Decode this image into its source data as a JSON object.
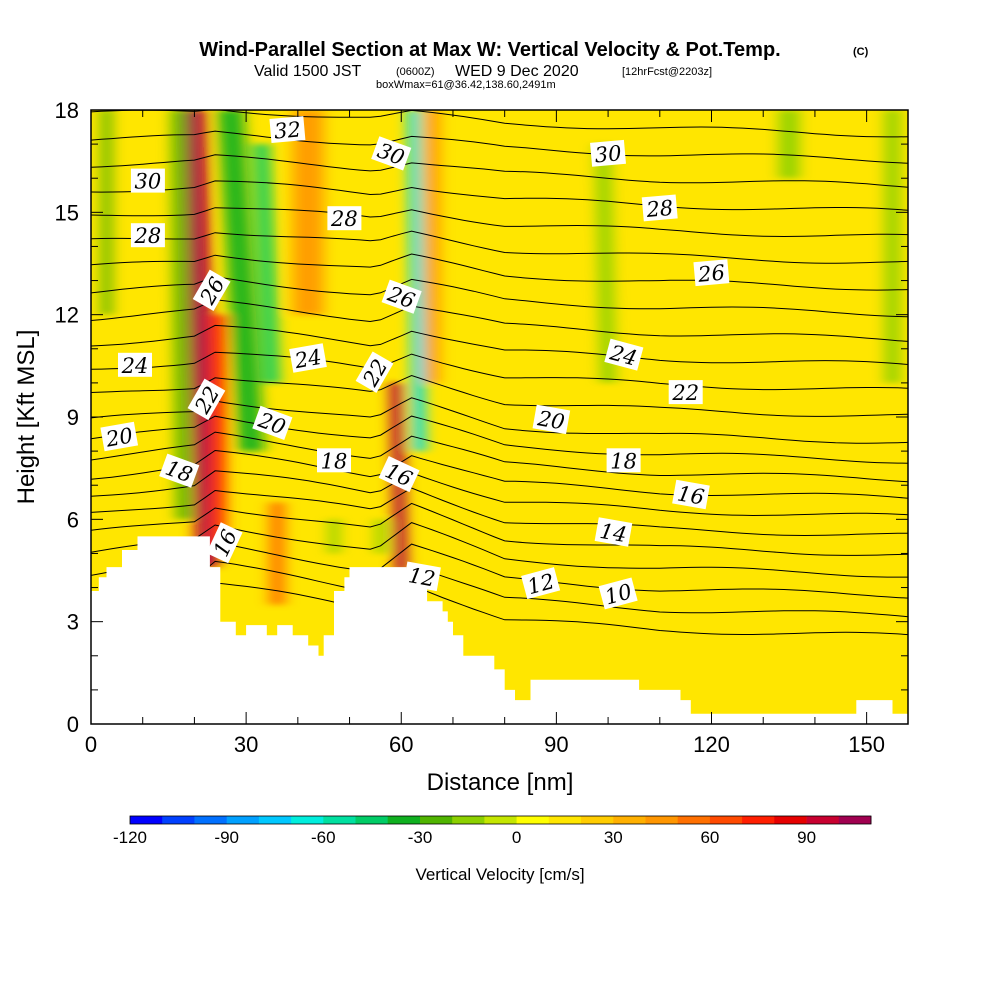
{
  "header": {
    "title": "Wind-Parallel Section at Max W: Vertical Velocity & Pot.Temp.",
    "title_unit": "(C)",
    "valid_prefix": "Valid 1500 JST",
    "valid_utc": "(0600Z)",
    "valid_date": "WED 9 Dec 2020",
    "forecast": "[12hrFcst@2203z]",
    "boxinfo": "boxWmax=61@36.42,138.60,2491m"
  },
  "chart_data": {
    "type": "heatmap",
    "xlabel": "Distance [nm]",
    "ylabel": "Height [Kft MSL]",
    "xlim": [
      0,
      158
    ],
    "ylim": [
      0,
      18
    ],
    "x_ticks": [
      0,
      30,
      60,
      90,
      120,
      150
    ],
    "y_ticks": [
      0,
      3,
      6,
      9,
      12,
      15,
      18
    ],
    "x_minor_step": 10,
    "y_minor_step": 1,
    "background_color": "#ffe600",
    "colorbar": {
      "title": "Vertical Velocity [cm/s]",
      "min": -120,
      "max": 110,
      "step": 10,
      "tick_values": [
        -120,
        -90,
        -60,
        -30,
        0,
        30,
        60,
        90
      ],
      "colors": [
        "#0000ff",
        "#0040ff",
        "#0070ff",
        "#00a0ff",
        "#00c8ff",
        "#00eedd",
        "#00e0a0",
        "#00cc66",
        "#10b020",
        "#50b400",
        "#8cd000",
        "#c4e600",
        "#ffff00",
        "#ffe600",
        "#ffcc00",
        "#ffb000",
        "#ff9600",
        "#ff7000",
        "#ff4a00",
        "#ff1e00",
        "#e60000",
        "#c80030",
        "#a00050",
        "#800070",
        "#600090"
      ]
    },
    "terrain": [
      [
        0,
        3.9
      ],
      [
        1.5,
        3.9
      ],
      [
        1.5,
        4.3
      ],
      [
        3,
        4.3
      ],
      [
        3,
        4.6
      ],
      [
        6,
        4.6
      ],
      [
        6,
        5.1
      ],
      [
        9,
        5.1
      ],
      [
        9,
        5.5
      ],
      [
        12,
        5.5
      ],
      [
        12,
        5.5
      ],
      [
        18,
        5.5
      ],
      [
        18,
        5.5
      ],
      [
        23,
        5.5
      ],
      [
        23,
        4.6
      ],
      [
        25,
        4.6
      ],
      [
        25,
        3
      ],
      [
        28,
        3
      ],
      [
        28,
        2.6
      ],
      [
        30,
        2.6
      ],
      [
        30,
        2.9
      ],
      [
        34,
        2.9
      ],
      [
        34,
        2.6
      ],
      [
        36,
        2.6
      ],
      [
        36,
        2.9
      ],
      [
        39,
        2.9
      ],
      [
        39,
        2.6
      ],
      [
        42,
        2.6
      ],
      [
        42,
        2.3
      ],
      [
        44,
        2.3
      ],
      [
        44,
        2
      ],
      [
        45,
        2
      ],
      [
        45,
        2.6
      ],
      [
        47,
        2.6
      ],
      [
        47,
        3.9
      ],
      [
        49,
        3.9
      ],
      [
        49,
        4.3
      ],
      [
        50,
        4.3
      ],
      [
        50,
        4.6
      ],
      [
        59,
        4.6
      ],
      [
        59,
        4.6
      ],
      [
        61,
        4.6
      ],
      [
        61,
        4.3
      ],
      [
        63,
        4.3
      ],
      [
        63,
        4.6
      ],
      [
        65,
        4.6
      ],
      [
        65,
        3.6
      ],
      [
        68,
        3.6
      ],
      [
        68,
        3.3
      ],
      [
        69,
        3.3
      ],
      [
        69,
        3
      ],
      [
        70,
        3
      ],
      [
        70,
        2.6
      ],
      [
        72,
        2.6
      ],
      [
        72,
        2
      ],
      [
        78,
        2
      ],
      [
        78,
        1.6
      ],
      [
        80,
        1.6
      ],
      [
        80,
        1
      ],
      [
        82,
        1
      ],
      [
        82,
        0.7
      ],
      [
        85,
        0.7
      ],
      [
        85,
        1.3
      ],
      [
        96,
        1.3
      ],
      [
        96,
        1.3
      ],
      [
        106,
        1.3
      ],
      [
        106,
        1
      ],
      [
        114,
        1
      ],
      [
        114,
        0.7
      ],
      [
        116,
        0.7
      ],
      [
        116,
        0.3
      ],
      [
        130,
        0.3
      ],
      [
        130,
        0.3
      ],
      [
        148,
        0.3
      ],
      [
        148,
        0.7
      ],
      [
        155,
        0.7
      ],
      [
        155,
        0.3
      ],
      [
        158,
        0.3
      ]
    ],
    "vertical_velocity_features": [
      {
        "x": 22.5,
        "y_bottom": 4.6,
        "y_top": 18,
        "width": 4.5,
        "lean": -2.5,
        "w": 95
      },
      {
        "x": 24.5,
        "y_bottom": 5.2,
        "y_top": 12,
        "width": 3.5,
        "lean": 0,
        "w": 60
      },
      {
        "x": 36,
        "y_bottom": 3.5,
        "y_top": 6.5,
        "width": 3,
        "lean": 0,
        "w": 55
      },
      {
        "x": 42,
        "y_bottom": 12,
        "y_top": 18,
        "width": 6,
        "lean": 0,
        "w": 40
      },
      {
        "x": 60,
        "y_bottom": 4.5,
        "y_top": 10,
        "width": 2.5,
        "lean": -1,
        "w": 90
      },
      {
        "x": 66,
        "y_bottom": 10,
        "y_top": 18,
        "width": 3,
        "lean": 0,
        "w": 40
      },
      {
        "x": 18,
        "y_bottom": 6,
        "y_top": 18,
        "width": 3,
        "lean": -1,
        "w": -30
      },
      {
        "x": 31,
        "y_bottom": 8,
        "y_top": 18,
        "width": 5,
        "lean": -4,
        "w": -35
      },
      {
        "x": 35,
        "y_bottom": 10,
        "y_top": 17,
        "width": 3,
        "lean": -2,
        "w": -45
      },
      {
        "x": 63.5,
        "y_bottom": 8,
        "y_top": 18,
        "width": 2.5,
        "lean": -1,
        "w": -70
      },
      {
        "x": 56,
        "y_bottom": 5,
        "y_top": 6,
        "width": 2,
        "lean": 0,
        "w": -20
      },
      {
        "x": 47,
        "y_bottom": 5,
        "y_top": 6,
        "width": 2,
        "lean": 0,
        "w": -20
      },
      {
        "x": 3,
        "y_bottom": 12,
        "y_top": 18,
        "width": 2,
        "lean": 0,
        "w": -25
      },
      {
        "x": 100,
        "y_bottom": 10,
        "y_top": 17,
        "width": 3,
        "lean": -1,
        "w": -20
      },
      {
        "x": 135,
        "y_bottom": 16,
        "y_top": 18,
        "width": 4,
        "lean": 0,
        "w": -15
      },
      {
        "x": 155,
        "y_bottom": 10,
        "y_top": 18,
        "width": 3,
        "lean": 0,
        "w": -20
      }
    ],
    "pot_temp_contours": {
      "line_color": "#000000",
      "levels": [
        10,
        11,
        12,
        13,
        14,
        15,
        16,
        17,
        18,
        19,
        20,
        21,
        22,
        23,
        24,
        25,
        26,
        27,
        28,
        29,
        30,
        31,
        32
      ],
      "base_profile": {
        "x": [
          0,
          20,
          24,
          40,
          55,
          62,
          80,
          110,
          158
        ],
        "offset": [
          0,
          0.6,
          1.2,
          0.8,
          0.4,
          1.4,
          0.2,
          0,
          0
        ]
      },
      "labels": [
        {
          "text": "30",
          "x": 11,
          "y": 15.9,
          "angle": 0
        },
        {
          "text": "28",
          "x": 11,
          "y": 14.3,
          "angle": 0
        },
        {
          "text": "24",
          "x": 8.5,
          "y": 10.5,
          "angle": 0
        },
        {
          "text": "20",
          "x": 5.5,
          "y": 8.4,
          "angle": -10
        },
        {
          "text": "18",
          "x": 17,
          "y": 7.4,
          "angle": 20
        },
        {
          "text": "26",
          "x": 23.5,
          "y": 12.7,
          "angle": -60
        },
        {
          "text": "22",
          "x": 22.5,
          "y": 9.5,
          "angle": -60
        },
        {
          "text": "16",
          "x": 26,
          "y": 5.3,
          "angle": -65
        },
        {
          "text": "32",
          "x": 38,
          "y": 17.4,
          "angle": -5
        },
        {
          "text": "28",
          "x": 49,
          "y": 14.8,
          "angle": 0
        },
        {
          "text": "24",
          "x": 42,
          "y": 10.7,
          "angle": -10
        },
        {
          "text": "20",
          "x": 35,
          "y": 8.8,
          "angle": 20
        },
        {
          "text": "18",
          "x": 47,
          "y": 7.7,
          "angle": 0
        },
        {
          "text": "30",
          "x": 58,
          "y": 16.7,
          "angle": 20
        },
        {
          "text": "26",
          "x": 60,
          "y": 12.5,
          "angle": 20
        },
        {
          "text": "22",
          "x": 55,
          "y": 10.3,
          "angle": -60
        },
        {
          "text": "16",
          "x": 59.5,
          "y": 7.3,
          "angle": 25
        },
        {
          "text": "12",
          "x": 64,
          "y": 4.3,
          "angle": 10
        },
        {
          "text": "30",
          "x": 100,
          "y": 16.7,
          "angle": -5
        },
        {
          "text": "28",
          "x": 110,
          "y": 15.1,
          "angle": -5
        },
        {
          "text": "26",
          "x": 120,
          "y": 13.2,
          "angle": -5
        },
        {
          "text": "24",
          "x": 103,
          "y": 10.8,
          "angle": 15
        },
        {
          "text": "22",
          "x": 115,
          "y": 9.7,
          "angle": 0
        },
        {
          "text": "20",
          "x": 89,
          "y": 8.9,
          "angle": 10
        },
        {
          "text": "18",
          "x": 103,
          "y": 7.7,
          "angle": 0
        },
        {
          "text": "16",
          "x": 116,
          "y": 6.7,
          "angle": 10
        },
        {
          "text": "14",
          "x": 101,
          "y": 5.6,
          "angle": 10
        },
        {
          "text": "12",
          "x": 87,
          "y": 4.1,
          "angle": -15
        },
        {
          "text": "10",
          "x": 102,
          "y": 3.8,
          "angle": -15
        }
      ]
    }
  }
}
